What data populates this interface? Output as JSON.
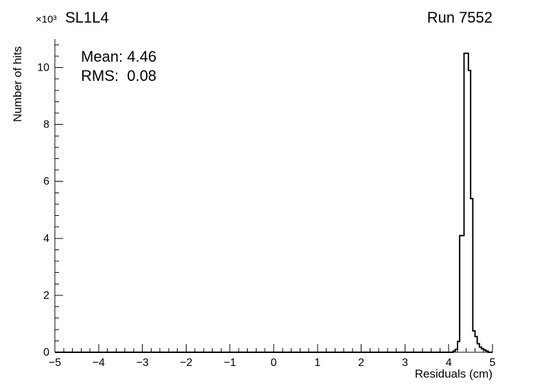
{
  "header": {
    "title": "SL1L4",
    "run": "Run 7552"
  },
  "stats": {
    "mean": "Mean: 4.46",
    "rms": "RMS:  0.08"
  },
  "axes": {
    "x_label": "Residuals (cm)",
    "y_label": "Number of hits",
    "y_scale_label": "×10³"
  },
  "colors": {
    "line": "#000000",
    "background": "#ffffff"
  },
  "chart_data": {
    "type": "bar",
    "title": "SL1L4",
    "annotation": "Run 7552",
    "xlabel": "Residuals (cm)",
    "ylabel": "Number of hits",
    "y_unit_scale": "×10³ hits",
    "mean": 4.46,
    "rms": 0.08,
    "x_range": [
      -5,
      5
    ],
    "y_range": [
      0,
      11
    ],
    "x_ticks": [
      {
        "value": -5,
        "label": "−5"
      },
      {
        "value": -4,
        "label": "−4"
      },
      {
        "value": -3,
        "label": "−3"
      },
      {
        "value": -2,
        "label": "−2"
      },
      {
        "value": -1,
        "label": "−1"
      },
      {
        "value": 0,
        "label": "0"
      },
      {
        "value": 1,
        "label": "1"
      },
      {
        "value": 2,
        "label": "2"
      },
      {
        "value": 3,
        "label": "3"
      },
      {
        "value": 4,
        "label": "4"
      },
      {
        "value": 5,
        "label": "5"
      }
    ],
    "y_ticks": [
      {
        "value": 0,
        "label": "0"
      },
      {
        "value": 2,
        "label": "2"
      },
      {
        "value": 4,
        "label": "4"
      },
      {
        "value": 6,
        "label": "6"
      },
      {
        "value": 8,
        "label": "8"
      },
      {
        "value": 10,
        "label": "10"
      }
    ],
    "x_minor_step": 0.2,
    "y_minor_step": 0.4,
    "bin_width": 0.05,
    "bins": [
      [
        4.1,
        0.04
      ],
      [
        4.15,
        0.1
      ],
      [
        4.2,
        0.38
      ],
      [
        4.25,
        4.1
      ],
      [
        4.3,
        4.1
      ],
      [
        4.35,
        10.5
      ],
      [
        4.4,
        10.5
      ],
      [
        4.45,
        9.9
      ],
      [
        4.5,
        5.4
      ],
      [
        4.55,
        0.75
      ],
      [
        4.6,
        0.55
      ],
      [
        4.65,
        0.3
      ],
      [
        4.7,
        0.18
      ],
      [
        4.75,
        0.12
      ],
      [
        4.8,
        0.08
      ],
      [
        4.85,
        0.04
      ]
    ]
  }
}
